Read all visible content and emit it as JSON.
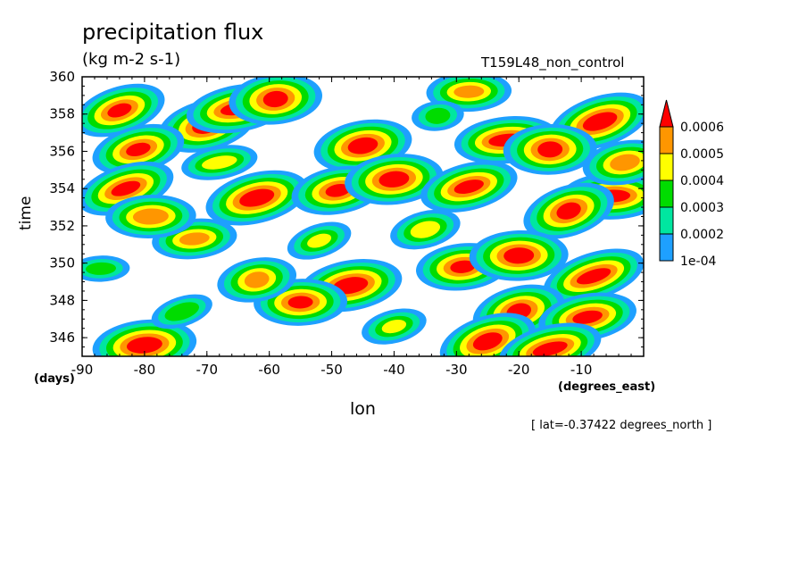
{
  "header": {
    "title": "precipitation flux",
    "units": "(kg m-2 s-1)",
    "run_name": "T159L48_non_control",
    "lat_note": "[ lat=-0.37422 degrees_north ]"
  },
  "chart_data": {
    "type": "filled-contour",
    "title": "precipitation flux",
    "units": "(kg m-2 s-1)",
    "xlabel": "lon",
    "x_unit": "(degrees_east)",
    "ylabel": "time",
    "y_unit": "(days)",
    "xlim": [
      -90,
      0
    ],
    "ylim": [
      345,
      360
    ],
    "x_ticks": [
      -90,
      -80,
      -70,
      -60,
      -50,
      -40,
      -30,
      -20,
      -10
    ],
    "x_tick_labels": [
      "-90",
      "-80",
      "-70",
      "-60",
      "-50",
      "-40",
      "-30",
      "-20",
      "-10"
    ],
    "y_ticks": [
      346,
      348,
      350,
      352,
      354,
      356,
      358,
      360
    ],
    "y_tick_labels": [
      "346",
      "348",
      "350",
      "352",
      "354",
      "356",
      "358",
      "360"
    ],
    "colorbar": {
      "levels": [
        0.0001,
        0.0002,
        0.0003,
        0.0004,
        0.0005,
        0.0006
      ],
      "labels": [
        "1e-04",
        "0.0002",
        "0.0003",
        "0.0004",
        "0.0005",
        "0.0006"
      ],
      "colors": [
        "#1ea0ff",
        "#00e6a0",
        "#00dc00",
        "#ffff00",
        "#ff9600",
        "#ff0000"
      ],
      "background": "#ffffff",
      "over_arrow": true
    },
    "cells": [
      {
        "lon": -84,
        "time": 358.2,
        "value": 0.0006
      },
      {
        "lon": -70,
        "time": 357.4,
        "value": 0.0006
      },
      {
        "lon": -65,
        "time": 358.3,
        "value": 0.0006
      },
      {
        "lon": -59,
        "time": 358.8,
        "value": 0.0006
      },
      {
        "lon": -28,
        "time": 359.2,
        "value": 0.0005
      },
      {
        "lon": -7,
        "time": 357.6,
        "value": 0.0006
      },
      {
        "lon": -81,
        "time": 356.1,
        "value": 0.0006
      },
      {
        "lon": -45,
        "time": 356.3,
        "value": 0.0006
      },
      {
        "lon": -22,
        "time": 356.6,
        "value": 0.0006
      },
      {
        "lon": -15,
        "time": 356.1,
        "value": 0.0006
      },
      {
        "lon": -83,
        "time": 354.0,
        "value": 0.0006
      },
      {
        "lon": -62,
        "time": 353.5,
        "value": 0.0006
      },
      {
        "lon": -49,
        "time": 353.9,
        "value": 0.0006
      },
      {
        "lon": -40,
        "time": 354.5,
        "value": 0.0006
      },
      {
        "lon": -5,
        "time": 353.6,
        "value": 0.0006
      },
      {
        "lon": -12,
        "time": 352.8,
        "value": 0.0006
      },
      {
        "lon": -28,
        "time": 354.1,
        "value": 0.0006
      },
      {
        "lon": -47,
        "time": 348.8,
        "value": 0.0006
      },
      {
        "lon": -29,
        "time": 349.8,
        "value": 0.0006
      },
      {
        "lon": -20,
        "time": 350.4,
        "value": 0.0006
      },
      {
        "lon": -8,
        "time": 349.3,
        "value": 0.0006
      },
      {
        "lon": -20,
        "time": 347.4,
        "value": 0.0006
      },
      {
        "lon": -9,
        "time": 347.1,
        "value": 0.0006
      },
      {
        "lon": -80,
        "time": 345.6,
        "value": 0.0006
      },
      {
        "lon": -55,
        "time": 347.9,
        "value": 0.0006
      },
      {
        "lon": -25,
        "time": 345.8,
        "value": 0.0006
      },
      {
        "lon": -15,
        "time": 345.4,
        "value": 0.0006
      },
      {
        "lon": -62,
        "time": 349.1,
        "value": 0.0005
      },
      {
        "lon": -72,
        "time": 351.3,
        "value": 0.0005
      },
      {
        "lon": -79,
        "time": 352.5,
        "value": 0.0005
      },
      {
        "lon": -52,
        "time": 351.2,
        "value": 0.0004
      },
      {
        "lon": -35,
        "time": 351.8,
        "value": 0.0004
      },
      {
        "lon": -68,
        "time": 355.4,
        "value": 0.0004
      },
      {
        "lon": -33,
        "time": 357.9,
        "value": 0.0003
      },
      {
        "lon": -87,
        "time": 349.7,
        "value": 0.0003
      },
      {
        "lon": -74,
        "time": 347.4,
        "value": 0.0003
      },
      {
        "lon": -40,
        "time": 346.6,
        "value": 0.0004
      },
      {
        "lon": -3,
        "time": 355.4,
        "value": 0.0005
      }
    ]
  }
}
